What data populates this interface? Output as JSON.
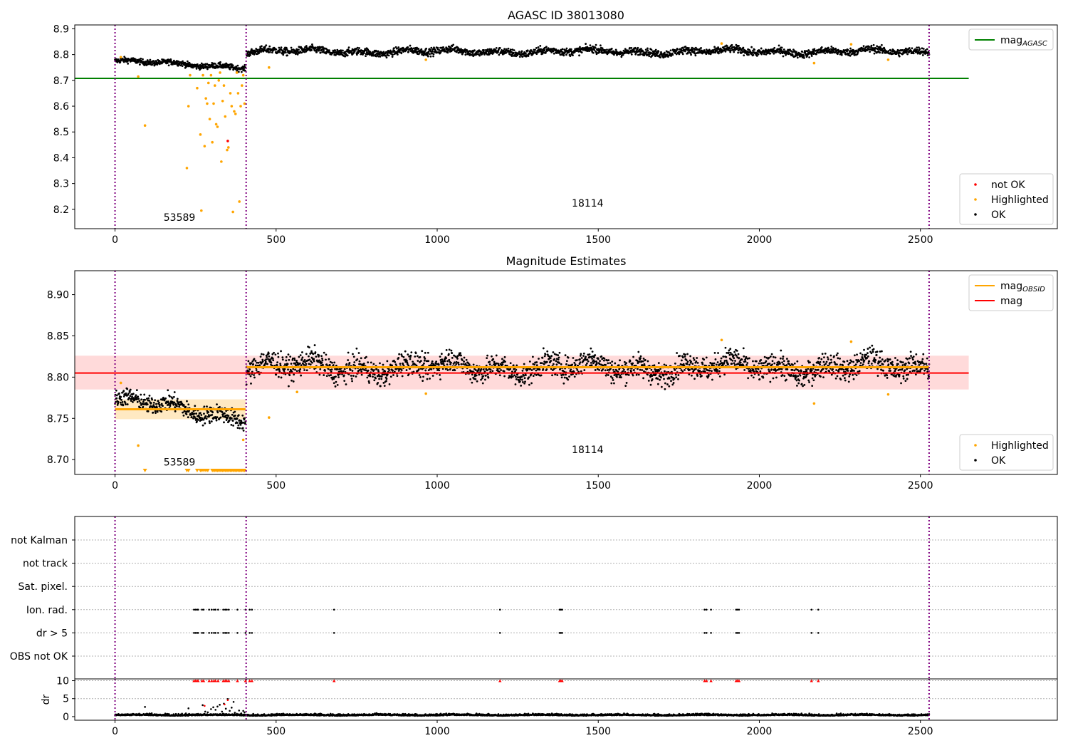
{
  "chart_data": [
    {
      "type": "scatter",
      "title": "AGASC ID 38013080",
      "xlabel": "",
      "ylabel": "",
      "xlim": [
        -125,
        2925
      ],
      "ylim": [
        8.125,
        8.915
      ],
      "xticks": [
        0,
        500,
        1000,
        1500,
        2000,
        2500
      ],
      "yticks": [
        8.2,
        8.3,
        8.4,
        8.5,
        8.6,
        8.7,
        8.8,
        8.9
      ],
      "ytick_labels": [
        "8.2",
        "8.3",
        "8.4",
        "8.5",
        "8.6",
        "8.7",
        "8.8",
        "8.9"
      ],
      "grid": false,
      "legend_upper": {
        "placement": "top-right",
        "entries": [
          {
            "label": "mag",
            "sub": "AGASC",
            "color": "#008000",
            "kind": "line"
          }
        ]
      },
      "legend_lower": {
        "placement": "bottom-right",
        "entries": [
          {
            "label": "not OK",
            "color": "#ff0000",
            "kind": "dot"
          },
          {
            "label": "Highlighted",
            "color": "#ffa500",
            "kind": "dot"
          },
          {
            "label": "OK",
            "color": "#000000",
            "kind": "dot"
          }
        ]
      },
      "vlines": [
        0,
        407,
        2527
      ],
      "vline_color": "#800080",
      "hlines": [
        {
          "y": 8.708,
          "x0": -125,
          "x1": 2650,
          "color": "#008000",
          "width": 2
        }
      ],
      "bands": [],
      "obsid_labels": [
        {
          "text": "53589",
          "x": 200,
          "y": 8.155
        },
        {
          "text": "18114",
          "x": 1467,
          "y": 8.21
        }
      ],
      "ok_segments": [
        {
          "x0": 0,
          "x1": 405,
          "y0": 8.775,
          "y1": 8.752,
          "noise": 0.009
        },
        {
          "x0": 408,
          "x1": 2527,
          "y0": 8.812,
          "y1": 8.812,
          "noise": 0.012
        }
      ],
      "highlighted": [
        [
          18,
          8.79
        ],
        [
          72,
          8.715
        ],
        [
          93,
          8.525
        ],
        [
          223,
          8.36
        ],
        [
          228,
          8.6
        ],
        [
          233,
          8.72
        ],
        [
          255,
          8.67
        ],
        [
          265,
          8.49
        ],
        [
          268,
          8.195
        ],
        [
          273,
          8.72
        ],
        [
          278,
          8.445
        ],
        [
          282,
          8.63
        ],
        [
          286,
          8.61
        ],
        [
          290,
          8.69
        ],
        [
          294,
          8.55
        ],
        [
          298,
          8.72
        ],
        [
          302,
          8.46
        ],
        [
          306,
          8.61
        ],
        [
          310,
          8.68
        ],
        [
          314,
          8.53
        ],
        [
          318,
          8.52
        ],
        [
          322,
          8.7
        ],
        [
          326,
          8.73
        ],
        [
          330,
          8.385
        ],
        [
          334,
          8.62
        ],
        [
          338,
          8.68
        ],
        [
          342,
          8.56
        ],
        [
          348,
          8.43
        ],
        [
          352,
          8.44
        ],
        [
          358,
          8.65
        ],
        [
          362,
          8.6
        ],
        [
          366,
          8.19
        ],
        [
          370,
          8.58
        ],
        [
          374,
          8.57
        ],
        [
          378,
          8.73
        ],
        [
          382,
          8.65
        ],
        [
          386,
          8.23
        ],
        [
          390,
          8.6
        ],
        [
          394,
          8.68
        ],
        [
          398,
          8.72
        ],
        [
          402,
          8.61
        ],
        [
          478,
          8.75
        ],
        [
          965,
          8.78
        ],
        [
          1883,
          8.843
        ],
        [
          2170,
          8.767
        ],
        [
          2285,
          8.84
        ],
        [
          2400,
          8.78
        ]
      ],
      "not_ok": [
        [
          350,
          8.465
        ]
      ]
    },
    {
      "type": "scatter",
      "title": "Magnitude Estimates",
      "xlabel": "",
      "ylabel": "",
      "xlim": [
        -125,
        2925
      ],
      "ylim": [
        8.682,
        8.929
      ],
      "xticks": [
        0,
        500,
        1000,
        1500,
        2000,
        2500
      ],
      "yticks": [
        8.7,
        8.75,
        8.8,
        8.85,
        8.9
      ],
      "ytick_labels": [
        "8.70",
        "8.75",
        "8.80",
        "8.85",
        "8.90"
      ],
      "grid": false,
      "legend_upper": {
        "placement": "top-right",
        "entries": [
          {
            "label": "mag",
            "sub": "OBSID",
            "color": "#ffa500",
            "kind": "line"
          },
          {
            "label": "mag",
            "sub": "",
            "color": "#ff0000",
            "kind": "line"
          }
        ]
      },
      "legend_lower": {
        "placement": "bottom-right",
        "entries": [
          {
            "label": "Highlighted",
            "color": "#ffa500",
            "kind": "dot"
          },
          {
            "label": "OK",
            "color": "#000000",
            "kind": "dot"
          }
        ]
      },
      "vlines": [
        0,
        407,
        2527
      ],
      "vline_color": "#800080",
      "hlines": [
        {
          "y": 8.805,
          "x0": -125,
          "x1": 2650,
          "color": "#ff0000",
          "width": 2
        },
        {
          "y": 8.761,
          "x0": 0,
          "x1": 405,
          "color": "#ffa500",
          "width": 3
        },
        {
          "y": 8.812,
          "x0": 408,
          "x1": 2527,
          "color": "#ffa500",
          "width": 3
        }
      ],
      "bands": [
        {
          "y0": 8.785,
          "y1": 8.826,
          "x0": -125,
          "x1": 2650,
          "color": "#ffdada"
        },
        {
          "y0": 8.749,
          "y1": 8.773,
          "x0": 0,
          "x1": 405,
          "color": "#ffe9c2"
        }
      ],
      "obsid_labels": [
        {
          "text": "53589",
          "x": 200,
          "y": 8.693
        },
        {
          "text": "18114",
          "x": 1467,
          "y": 8.708
        }
      ],
      "ok_segments": [
        {
          "x0": 0,
          "x1": 405,
          "y0": 8.772,
          "y1": 8.752,
          "noise": 0.009
        },
        {
          "x0": 408,
          "x1": 2527,
          "y0": 8.812,
          "y1": 8.812,
          "noise": 0.012
        }
      ],
      "highlighted": [
        [
          18,
          8.793
        ],
        [
          72,
          8.717
        ],
        [
          398,
          8.724
        ],
        [
          478,
          8.751
        ],
        [
          565,
          8.782
        ],
        [
          965,
          8.78
        ],
        [
          1883,
          8.845
        ],
        [
          2170,
          8.768
        ],
        [
          2285,
          8.843
        ],
        [
          2400,
          8.779
        ]
      ],
      "highlighted_low_markers": [
        93,
        223,
        228,
        255,
        265,
        270,
        276,
        282,
        288,
        302,
        306,
        310,
        314,
        318,
        322,
        326,
        330,
        334,
        338,
        342,
        346,
        350,
        354,
        358,
        362,
        366,
        370,
        374,
        378,
        382,
        386,
        390,
        394,
        398,
        402
      ]
    },
    {
      "type": "scatter",
      "title": "",
      "xlabel": "",
      "xticks": [
        0,
        500,
        1000,
        1500,
        2000,
        2500
      ],
      "xlim": [
        -125,
        2925
      ],
      "flag_categories": [
        "not Kalman",
        "not track",
        "Sat. pixel.",
        "Ion. rad.",
        "dr > 5",
        "OBS not OK"
      ],
      "flag_points": {
        "Ion. rad.": [
          245,
          250,
          255,
          258,
          270,
          275,
          292,
          300,
          307,
          312,
          320,
          336,
          342,
          347,
          353,
          380,
          405,
          418,
          425,
          680,
          1195,
          1380,
          1384,
          1388,
          1830,
          1836,
          1850,
          1928,
          1932,
          1937,
          2162,
          2183
        ],
        "dr > 5": [
          245,
          250,
          255,
          258,
          270,
          275,
          292,
          300,
          307,
          312,
          320,
          336,
          342,
          347,
          353,
          380,
          405,
          418,
          425,
          680,
          1195,
          1380,
          1384,
          1388,
          1830,
          1836,
          1850,
          1928,
          1932,
          1937,
          2162,
          2183
        ]
      },
      "dr": {
        "ylabel": "dr",
        "ylim": [
          -1,
          10.5
        ],
        "yticks": [
          0,
          5,
          10
        ],
        "ytick_labels": [
          "0",
          "5",
          "10"
        ],
        "baseline_segments": [
          {
            "x0": 0,
            "x1": 2527,
            "y": 0.3,
            "noise": 0.22
          }
        ],
        "capped_value": 10,
        "capped_x": [
          245,
          250,
          255,
          258,
          270,
          275,
          292,
          300,
          307,
          312,
          320,
          336,
          342,
          347,
          353,
          380,
          405,
          418,
          425,
          680,
          1195,
          1380,
          1384,
          1388,
          1830,
          1836,
          1850,
          1928,
          1932,
          1937,
          2162,
          2183
        ],
        "scatter_points": [
          [
            93,
            2.7
          ],
          [
            220,
            0.9
          ],
          [
            228,
            2.3
          ],
          [
            250,
            0.6
          ],
          [
            262,
            0.5
          ],
          [
            272,
            3.2
          ],
          [
            280,
            1.4
          ],
          [
            288,
            1.2
          ],
          [
            298,
            2.1
          ],
          [
            305,
            2.6
          ],
          [
            312,
            1.9
          ],
          [
            318,
            2.8
          ],
          [
            325,
            3.3
          ],
          [
            332,
            1.4
          ],
          [
            338,
            3.6
          ],
          [
            344,
            2.2
          ],
          [
            350,
            4.9
          ],
          [
            356,
            1.6
          ],
          [
            362,
            2.5
          ],
          [
            368,
            4.1
          ],
          [
            372,
            1.1
          ],
          [
            378,
            0.8
          ],
          [
            385,
            1.7
          ],
          [
            392,
            0.9
          ],
          [
            398,
            1.6
          ],
          [
            402,
            1.2
          ]
        ],
        "red_points": [
          [
            278,
            3.0
          ],
          [
            340,
            3.4
          ],
          [
            350,
            4.6
          ]
        ]
      },
      "vlines": [
        0,
        407,
        2527
      ],
      "vline_color": "#800080"
    }
  ],
  "axes": {
    "xtick_labels": [
      "0",
      "500",
      "1000",
      "1500",
      "2000",
      "2500"
    ]
  }
}
